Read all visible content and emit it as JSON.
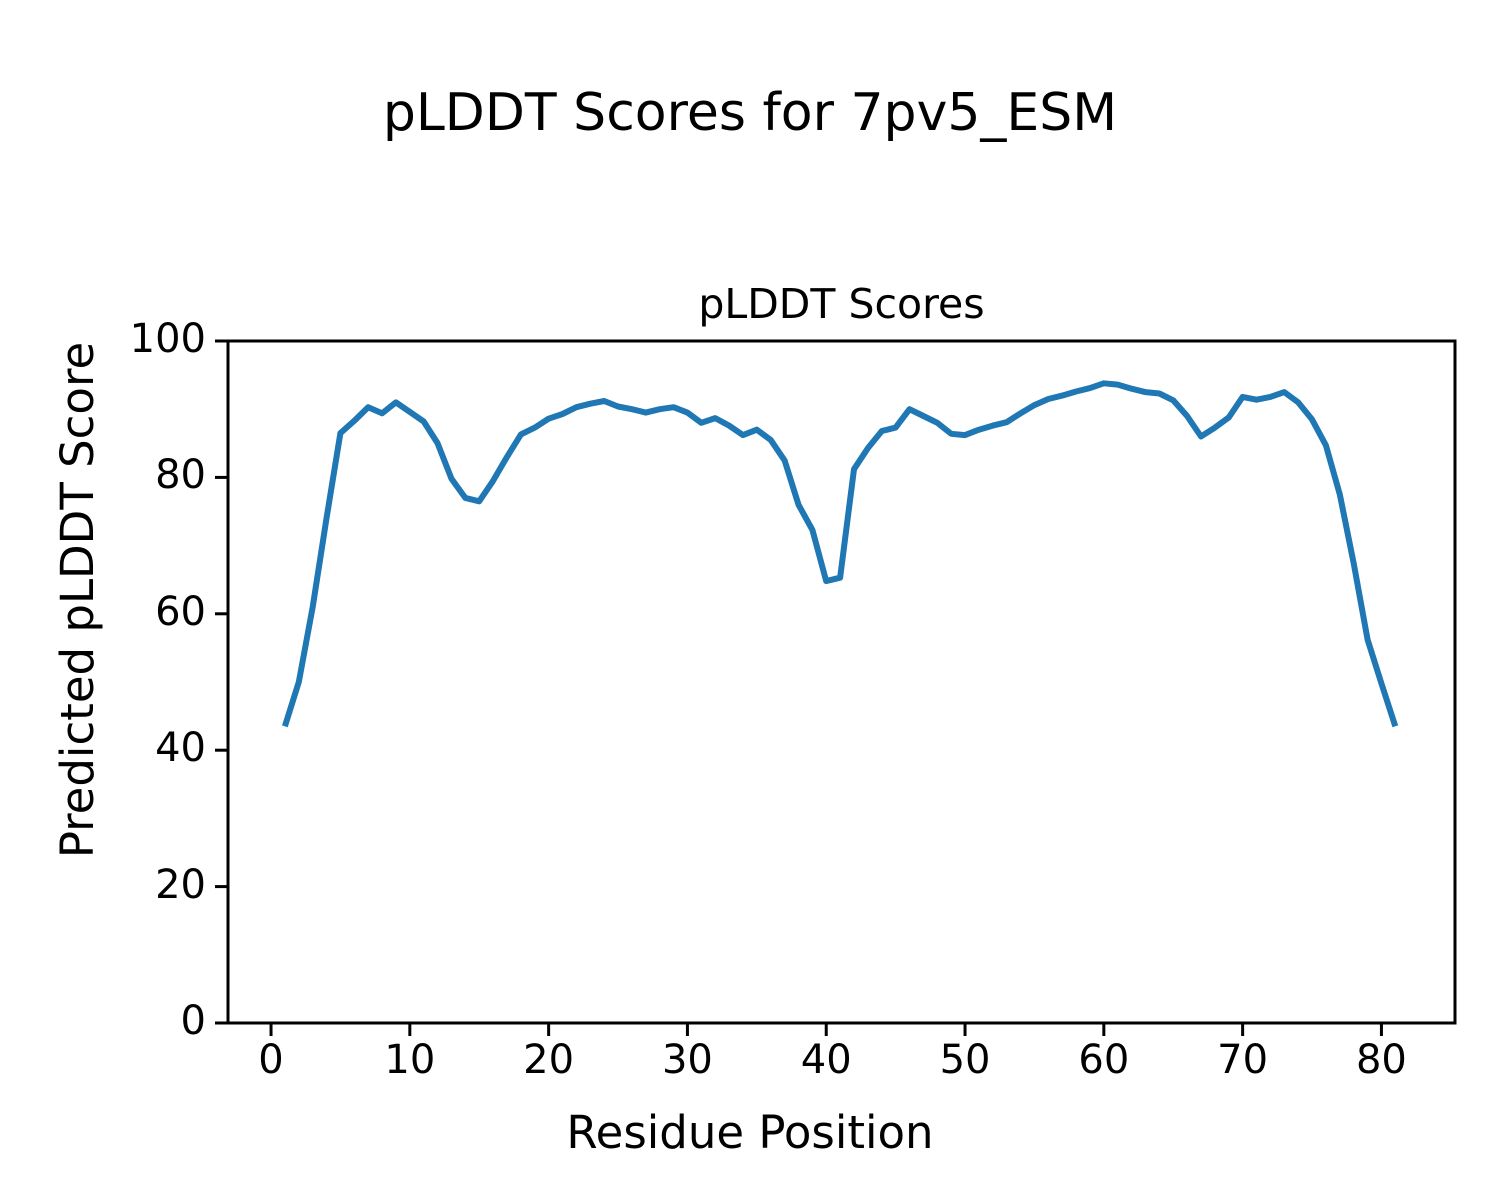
{
  "figure": {
    "suptitle": "pLDDT Scores for 7pv5_ESM"
  },
  "colors": {
    "accent": "#1f77b4",
    "text": "#000000",
    "background": "#ffffff"
  },
  "chart_data": {
    "type": "line",
    "title": "pLDDT Scores",
    "xlabel": "Residue Position",
    "ylabel": "Predicted pLDDT Score",
    "xlim": [
      -3.1,
      85.3
    ],
    "ylim": [
      0,
      100
    ],
    "xticks": [
      0,
      10,
      20,
      30,
      40,
      50,
      60,
      70,
      80
    ],
    "yticks": [
      0,
      20,
      40,
      60,
      80,
      100
    ],
    "grid": false,
    "legend": "none",
    "line_color": "#1f77b4",
    "line_width": 6,
    "series": [
      {
        "name": "pLDDT",
        "x": [
          1,
          2,
          3,
          4,
          5,
          6,
          7,
          8,
          9,
          10,
          11,
          12,
          13,
          14,
          15,
          16,
          17,
          18,
          19,
          20,
          21,
          22,
          23,
          24,
          25,
          26,
          27,
          28,
          29,
          30,
          31,
          32,
          33,
          34,
          35,
          36,
          37,
          38,
          39,
          40,
          41,
          42,
          43,
          44,
          45,
          46,
          47,
          48,
          49,
          50,
          51,
          52,
          53,
          54,
          55,
          56,
          57,
          58,
          59,
          60,
          61,
          62,
          63,
          64,
          65,
          66,
          67,
          68,
          69,
          70,
          71,
          72,
          73,
          74,
          75,
          76,
          77,
          78,
          79,
          80,
          81
        ],
        "values": [
          43.5,
          50.0,
          61.0,
          74.0,
          86.5,
          88.3,
          90.3,
          89.4,
          91.0,
          89.6,
          88.2,
          85.0,
          79.8,
          77.0,
          76.5,
          79.5,
          83.0,
          86.3,
          87.3,
          88.6,
          89.3,
          90.3,
          90.8,
          91.2,
          90.4,
          90.0,
          89.5,
          90.0,
          90.3,
          89.5,
          88.0,
          88.7,
          87.6,
          86.2,
          87.0,
          85.5,
          82.5,
          76.0,
          72.3,
          64.8,
          65.3,
          81.2,
          84.3,
          86.8,
          87.3,
          90.0,
          89.0,
          88.0,
          86.4,
          86.2,
          87.0,
          87.6,
          88.1,
          89.4,
          90.6,
          91.5,
          92.0,
          92.6,
          93.1,
          93.8,
          93.6,
          93.0,
          92.5,
          92.3,
          91.3,
          89.0,
          86.0,
          87.3,
          88.8,
          91.8,
          91.4,
          91.8,
          92.5,
          91.0,
          88.5,
          84.7,
          77.5,
          67.4,
          56.2,
          49.8,
          43.5
        ]
      }
    ]
  }
}
